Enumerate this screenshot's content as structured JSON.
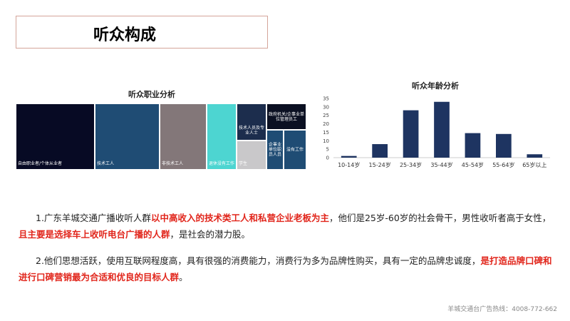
{
  "page": {
    "title": "听众构成",
    "footer": "羊城交通台广告热线：4008-772-662"
  },
  "occupation_chart": {
    "title": "听众职业分析",
    "cells": [
      {
        "name": "自由职业者/个体从业者",
        "color": "#070a24"
      },
      {
        "name": "技术工人",
        "color": "#1f4c74"
      },
      {
        "name": "非技术工人",
        "color": "#837779"
      },
      {
        "name": "退休没有工作",
        "color": "#4dd5d1"
      },
      {
        "name": "技术人员及专业人士",
        "color": "#1c2d4d"
      },
      {
        "name": "政府机关/企事业单位管理员工",
        "color": "#0b1022"
      },
      {
        "name": "学生",
        "color": "#c9c8ca"
      },
      {
        "name": "企事业单位职员人员",
        "color": "#1f4c74"
      },
      {
        "name": "没有工作",
        "color": "#1f4c74"
      }
    ]
  },
  "chart_data": {
    "type": "bar",
    "title": "听众年龄分析",
    "categories": [
      "10-14岁",
      "15-24岁",
      "25-34岁",
      "35-44岁",
      "45-54岁",
      "55-64岁",
      "65岁以上"
    ],
    "values": [
      1,
      8,
      28,
      33,
      14.5,
      14,
      2
    ],
    "yticks": [
      0,
      5,
      10,
      15,
      20,
      25,
      30,
      35
    ],
    "ylim": [
      0,
      35
    ],
    "bar_color": "#1e3461",
    "grid": false
  },
  "text": {
    "p1": {
      "part1": "1.广东羊城交通广播收听人群",
      "hl1": "以中高收入的技术类工人和私营企业老板为主",
      "part2": "，他们是25岁-60岁的社会骨干，男性收听者高于女性，",
      "hl2": "且主要是选择车上收听电台广播的人群",
      "part3": "，是社会的潜力股。"
    },
    "p2": {
      "part1": "2.他们思想活跃，使用互联网程度高，具有很强的消费能力，消费行为多为品牌性购买，具有一定的品牌忠诚度，",
      "hl1": "是打造品牌口碑和进行口碑营销最为合适和优良的目标人群",
      "part2": "。"
    }
  }
}
